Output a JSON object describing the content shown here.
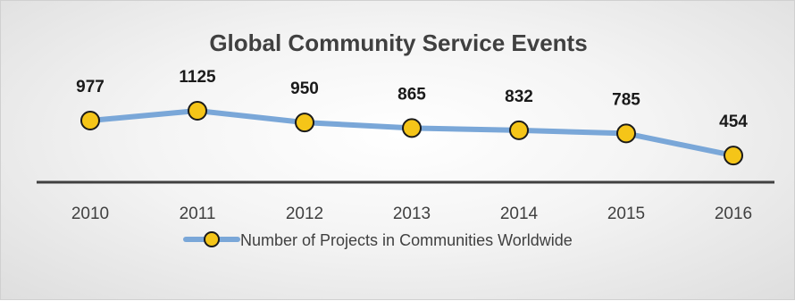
{
  "chart_data": {
    "type": "line",
    "title": "Global Community Service Events",
    "categories": [
      "2010",
      "2011",
      "2012",
      "2013",
      "2014",
      "2015",
      "2016"
    ],
    "series": [
      {
        "name": "Number of Projects in Communities Worldwide",
        "values": [
          977,
          1125,
          950,
          865,
          832,
          785,
          454
        ],
        "line_color": "#7aa7d8",
        "marker_fill": "#f5c518",
        "marker_stroke": "#1a1a1a"
      }
    ],
    "data_labels": [
      "977",
      "1125",
      "950",
      "865",
      "832",
      "785",
      "454"
    ],
    "legend_position": "bottom",
    "grid": false,
    "axis_color": "#404040"
  }
}
